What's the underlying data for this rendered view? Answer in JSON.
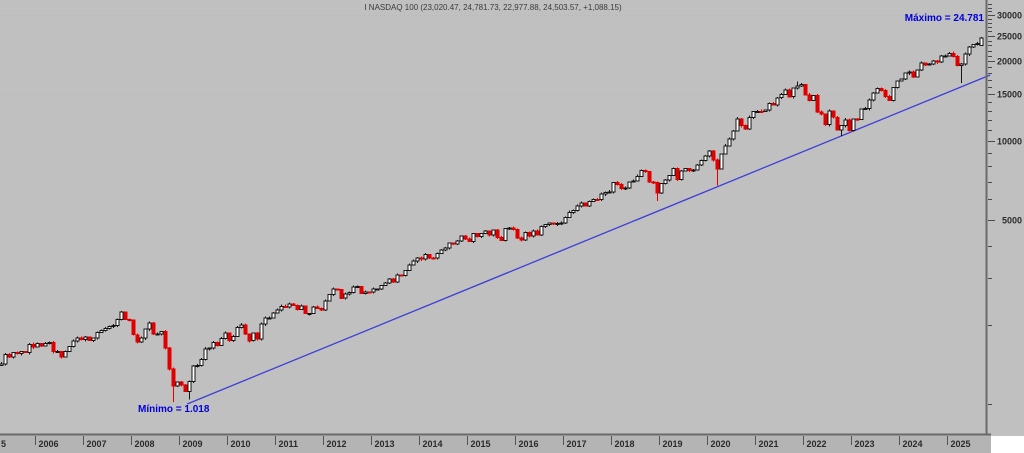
{
  "title": "I NASDAQ 100 (23,020.47, 24,781.73, 22,977.88, 24,503.57, +1,088.15)",
  "annotations": {
    "max_label": "Máximo = 24.781",
    "min_label": "Mínimo = 1.018"
  },
  "colors": {
    "background": "#c0c0c0",
    "axis_strip": "#b4b4b4",
    "axis_line": "#6a6a6a",
    "grid": "#b7b7b7",
    "bull_fill": "#ffffff",
    "bull_stroke": "#151515",
    "bear": "#e00000",
    "trendline": "#3d3dd8",
    "annotation_blue": "#0000dd"
  },
  "chart_data": {
    "type": "candlestick",
    "symbol": "NASDAQ 100",
    "timeframe": "monthly",
    "scale": "logarithmic",
    "title": "I NASDAQ 100 (23,020.47, 24,781.73, 22,977.88, 24,503.57, +1,088.15)",
    "last_bar": {
      "open": 23020.47,
      "high": 24781.73,
      "low": 22977.88,
      "close": 24503.57,
      "change": "+1,088.15"
    },
    "maximum": 24781,
    "minimum": 1018,
    "start": {
      "year": 2005,
      "month": 4
    },
    "closes": [
      1421,
      1541,
      1511,
      1571,
      1554,
      1584,
      1570,
      1684,
      1645,
      1696,
      1665,
      1700,
      1710,
      1580,
      1582,
      1511,
      1584,
      1654,
      1733,
      1779,
      1757,
      1796,
      1746,
      1780,
      1873,
      1906,
      1935,
      1973,
      1988,
      2092,
      2239,
      2097,
      2085,
      1833,
      1724,
      1780,
      1928,
      2033,
      1845,
      1847,
      1886,
      1635,
      1359,
      1171,
      1211,
      1180,
      1117,
      1217,
      1394,
      1402,
      1477,
      1622,
      1630,
      1717,
      1669,
      1771,
      1860,
      1746,
      1806,
      1950,
      1999,
      1849,
      1740,
      1865,
      1766,
      2011,
      2124,
      2127,
      2218,
      2277,
      2351,
      2338,
      2404,
      2371,
      2287,
      2353,
      2206,
      2212,
      2339,
      2305,
      2278,
      2462,
      2606,
      2738,
      2724,
      2523,
      2615,
      2654,
      2778,
      2799,
      2630,
      2670,
      2661,
      2732,
      2738,
      2818,
      2887,
      2982,
      2910,
      3090,
      3073,
      3218,
      3377,
      3487,
      3592,
      3553,
      3696,
      3591,
      3582,
      3736,
      3843,
      3908,
      4082,
      4049,
      4158,
      4347,
      4236,
      4151,
      4442,
      4333,
      4446,
      4532,
      4383,
      4588,
      4292,
      4182,
      4640,
      4665,
      4593,
      4279,
      4201,
      4484,
      4341,
      4541,
      4393,
      4732,
      4798,
      4876,
      4820,
      4849,
      4863,
      5109,
      5346,
      5437,
      5646,
      5789,
      5647,
      5880,
      5988,
      5979,
      6263,
      6364,
      6396,
      6950,
      6807,
      6581,
      6615,
      6969,
      7041,
      7317,
      7691,
      7627,
      6966,
      6949,
      6329,
      6869,
      7102,
      7379,
      7826,
      7115,
      7671,
      7848,
      7691,
      7749,
      8083,
      8403,
      8733,
      9151,
      8461,
      7813,
      8889,
      9556,
      10157,
      10906,
      12110,
      11418,
      11052,
      12268,
      12888,
      12925,
      12909,
      13092,
      13860,
      13687,
      14555,
      14960,
      15583,
      14690,
      15850,
      16136,
      16320,
      14930,
      14238,
      14838,
      12855,
      12642,
      11504,
      12948,
      12272,
      10971,
      11406,
      11994,
      10939,
      12101,
      12042,
      13181,
      13245,
      14254,
      15179,
      15750,
      15501,
      14715,
      14180,
      15947,
      16825,
      17137,
      18043,
      18254,
      17440,
      18536,
      19682,
      19362,
      19574,
      20060,
      19890,
      20930,
      21012,
      21478,
      20884,
      19278,
      19571,
      21340,
      22679,
      23218,
      23415,
      24503.57
    ],
    "overrides": {
      "43": {
        "low": 1018
      },
      "47": {
        "low": 1040
      },
      "164": {
        "low": 5895
      },
      "179": {
        "low": 6772
      },
      "199": {
        "high": 16764
      },
      "210": {
        "low": 10440
      },
      "240": {
        "low": 16542
      },
      "245": {
        "open": 23020.47,
        "high": 24781.73,
        "low": 22977.88
      }
    },
    "x_axis": {
      "tick_labels": [
        "5",
        "2006",
        "2007",
        "2008",
        "2009",
        "2010",
        "2011",
        "2012",
        "2013",
        "2014",
        "2015",
        "2016",
        "2017",
        "2018",
        "2019",
        "2020",
        "2021",
        "2022",
        "2023",
        "2024",
        "2025"
      ]
    },
    "y_axis": {
      "side": "right",
      "tick_labels": [
        "30000",
        "25000",
        "20000",
        "15000",
        "10000",
        "5000"
      ],
      "minor_tick_step": 1000,
      "range_top": 33500,
      "range_bottom": 770
    },
    "trendline": {
      "t1": 2009.17,
      "v1": 1001,
      "t2": 2025.9,
      "v2": 17763
    }
  }
}
